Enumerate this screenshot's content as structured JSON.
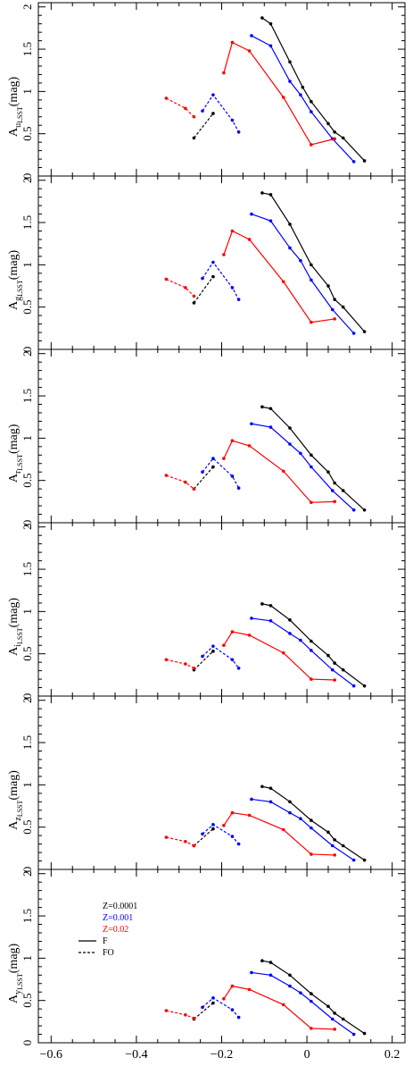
{
  "chart_data": {
    "type": "line",
    "xlabel": "Log(P)(days)",
    "xlim": [
      -0.63,
      0.23
    ],
    "x_ticks": [
      -0.6,
      -0.4,
      -0.2,
      0,
      0.2
    ],
    "x_tick_labels": [
      "−0.6",
      "−0.4",
      "−0.2",
      "0",
      "0.2"
    ],
    "ylim": [
      0,
      2.05
    ],
    "y_ticks": [
      0,
      0.5,
      1,
      1.5,
      2
    ],
    "y_tick_labels": [
      "0",
      "0.5",
      "1",
      "1.5",
      "2"
    ],
    "grid": false,
    "colors": {
      "Z=0.0001": "#000000",
      "Z=0.001": "#0000ff",
      "Z=0.02": "#ff0000"
    },
    "legend": {
      "panel": 5,
      "metallicities": [
        {
          "label": "Z=0.0001",
          "color": "#000000"
        },
        {
          "label": "Z=0.001",
          "color": "#0000ff"
        },
        {
          "label": "Z=0.02",
          "color": "#ff0000"
        }
      ],
      "modes": [
        {
          "label": "F",
          "style": "solid"
        },
        {
          "label": "FO",
          "style": "dashed"
        }
      ]
    },
    "panels": [
      {
        "ylabel_main": "A",
        "ylabel_sub": "u",
        "ylabel_subsub": "LSST",
        "ylabel_unit": "(mag)",
        "series": [
          {
            "metallicity": "Z=0.0001",
            "mode": "F",
            "x": [
              -0.105,
              -0.085,
              -0.04,
              -0.01,
              0.01,
              0.05,
              0.065,
              0.085,
              0.135
            ],
            "y": [
              1.87,
              1.8,
              1.35,
              1.05,
              0.88,
              0.62,
              0.52,
              0.45,
              0.18
            ]
          },
          {
            "metallicity": "Z=0.001",
            "mode": "F",
            "x": [
              -0.13,
              -0.085,
              -0.04,
              -0.015,
              0.01,
              0.06,
              0.11
            ],
            "y": [
              1.66,
              1.54,
              1.12,
              0.96,
              0.76,
              0.44,
              0.17
            ]
          },
          {
            "metallicity": "Z=0.02",
            "mode": "F",
            "x": [
              -0.195,
              -0.175,
              -0.135,
              -0.055,
              0.01,
              0.065
            ],
            "y": [
              1.22,
              1.58,
              1.48,
              0.93,
              0.37,
              0.44
            ]
          },
          {
            "metallicity": "Z=0.0001",
            "mode": "FO",
            "x": [
              -0.265,
              -0.22
            ],
            "y": [
              0.45,
              0.74
            ]
          },
          {
            "metallicity": "Z=0.001",
            "mode": "FO",
            "x": [
              -0.245,
              -0.22,
              -0.175,
              -0.16
            ],
            "y": [
              0.77,
              0.96,
              0.66,
              0.52
            ]
          },
          {
            "metallicity": "Z=0.02",
            "mode": "FO",
            "x": [
              -0.33,
              -0.285,
              -0.265
            ],
            "y": [
              0.92,
              0.8,
              0.7
            ]
          }
        ]
      },
      {
        "ylabel_main": "A",
        "ylabel_sub": "g",
        "ylabel_subsub": "LSST",
        "ylabel_unit": "(mag)",
        "series": [
          {
            "metallicity": "Z=0.0001",
            "mode": "F",
            "x": [
              -0.105,
              -0.085,
              -0.04,
              0.01,
              0.05,
              0.065,
              0.085,
              0.135
            ],
            "y": [
              1.85,
              1.83,
              1.48,
              1.0,
              0.75,
              0.59,
              0.5,
              0.21
            ]
          },
          {
            "metallicity": "Z=0.001",
            "mode": "F",
            "x": [
              -0.13,
              -0.085,
              -0.04,
              -0.015,
              0.01,
              0.06,
              0.11
            ],
            "y": [
              1.6,
              1.52,
              1.2,
              1.05,
              0.82,
              0.47,
              0.19
            ]
          },
          {
            "metallicity": "Z=0.02",
            "mode": "F",
            "x": [
              -0.195,
              -0.175,
              -0.135,
              -0.055,
              0.01,
              0.065
            ],
            "y": [
              1.12,
              1.4,
              1.3,
              0.8,
              0.32,
              0.36
            ]
          },
          {
            "metallicity": "Z=0.0001",
            "mode": "FO",
            "x": [
              -0.265,
              -0.22
            ],
            "y": [
              0.55,
              0.86
            ]
          },
          {
            "metallicity": "Z=0.001",
            "mode": "FO",
            "x": [
              -0.245,
              -0.22,
              -0.175,
              -0.16
            ],
            "y": [
              0.84,
              1.03,
              0.73,
              0.59
            ]
          },
          {
            "metallicity": "Z=0.02",
            "mode": "FO",
            "x": [
              -0.33,
              -0.285,
              -0.265
            ],
            "y": [
              0.83,
              0.73,
              0.63
            ]
          }
        ]
      },
      {
        "ylabel_main": "A",
        "ylabel_sub": "r",
        "ylabel_subsub": "LSST",
        "ylabel_unit": "(mag)",
        "series": [
          {
            "metallicity": "Z=0.0001",
            "mode": "F",
            "x": [
              -0.105,
              -0.085,
              -0.04,
              0.01,
              0.05,
              0.065,
              0.085,
              0.135
            ],
            "y": [
              1.37,
              1.35,
              1.12,
              0.8,
              0.6,
              0.47,
              0.38,
              0.15
            ]
          },
          {
            "metallicity": "Z=0.001",
            "mode": "F",
            "x": [
              -0.13,
              -0.085,
              -0.04,
              -0.015,
              0.01,
              0.06,
              0.11
            ],
            "y": [
              1.17,
              1.13,
              0.93,
              0.82,
              0.66,
              0.38,
              0.15
            ]
          },
          {
            "metallicity": "Z=0.02",
            "mode": "F",
            "x": [
              -0.195,
              -0.175,
              -0.135,
              -0.055,
              0.01,
              0.065
            ],
            "y": [
              0.76,
              0.97,
              0.91,
              0.61,
              0.24,
              0.25
            ]
          },
          {
            "metallicity": "Z=0.0001",
            "mode": "FO",
            "x": [
              -0.265,
              -0.22
            ],
            "y": [
              0.4,
              0.66
            ]
          },
          {
            "metallicity": "Z=0.001",
            "mode": "FO",
            "x": [
              -0.245,
              -0.22,
              -0.175,
              -0.16
            ],
            "y": [
              0.6,
              0.76,
              0.55,
              0.41
            ]
          },
          {
            "metallicity": "Z=0.02",
            "mode": "FO",
            "x": [
              -0.33,
              -0.285,
              -0.265
            ],
            "y": [
              0.56,
              0.48,
              0.4
            ]
          }
        ]
      },
      {
        "ylabel_main": "A",
        "ylabel_sub": "i",
        "ylabel_subsub": "LSST",
        "ylabel_unit": "(mag)",
        "series": [
          {
            "metallicity": "Z=0.0001",
            "mode": "F",
            "x": [
              -0.105,
              -0.085,
              -0.04,
              0.01,
              0.05,
              0.065,
              0.085,
              0.135
            ],
            "y": [
              1.09,
              1.07,
              0.9,
              0.65,
              0.48,
              0.39,
              0.31,
              0.12
            ]
          },
          {
            "metallicity": "Z=0.001",
            "mode": "F",
            "x": [
              -0.13,
              -0.085,
              -0.04,
              -0.015,
              0.01,
              0.06,
              0.11
            ],
            "y": [
              0.92,
              0.89,
              0.74,
              0.66,
              0.54,
              0.31,
              0.12
            ]
          },
          {
            "metallicity": "Z=0.02",
            "mode": "F",
            "x": [
              -0.195,
              -0.175,
              -0.135,
              -0.055,
              0.01,
              0.065
            ],
            "y": [
              0.6,
              0.76,
              0.72,
              0.51,
              0.2,
              0.19
            ]
          },
          {
            "metallicity": "Z=0.0001",
            "mode": "FO",
            "x": [
              -0.265,
              -0.22
            ],
            "y": [
              0.31,
              0.53
            ]
          },
          {
            "metallicity": "Z=0.001",
            "mode": "FO",
            "x": [
              -0.245,
              -0.22,
              -0.175,
              -0.16
            ],
            "y": [
              0.47,
              0.59,
              0.43,
              0.33
            ]
          },
          {
            "metallicity": "Z=0.02",
            "mode": "FO",
            "x": [
              -0.33,
              -0.285,
              -0.265
            ],
            "y": [
              0.43,
              0.38,
              0.33
            ]
          }
        ]
      },
      {
        "ylabel_main": "A",
        "ylabel_sub": "z",
        "ylabel_subsub": "LSST",
        "ylabel_unit": "(mag)",
        "series": [
          {
            "metallicity": "Z=0.0001",
            "mode": "F",
            "x": [
              -0.105,
              -0.085,
              -0.04,
              0.01,
              0.05,
              0.065,
              0.085,
              0.135
            ],
            "y": [
              0.98,
              0.96,
              0.8,
              0.58,
              0.44,
              0.35,
              0.28,
              0.11
            ]
          },
          {
            "metallicity": "Z=0.001",
            "mode": "F",
            "x": [
              -0.13,
              -0.085,
              -0.04,
              -0.015,
              0.01,
              0.06,
              0.11
            ],
            "y": [
              0.83,
              0.8,
              0.67,
              0.6,
              0.49,
              0.28,
              0.11
            ]
          },
          {
            "metallicity": "Z=0.02",
            "mode": "F",
            "x": [
              -0.195,
              -0.175,
              -0.135,
              -0.055,
              0.01,
              0.065
            ],
            "y": [
              0.52,
              0.67,
              0.64,
              0.47,
              0.18,
              0.17
            ]
          },
          {
            "metallicity": "Z=0.0001",
            "mode": "FO",
            "x": [
              -0.265,
              -0.22
            ],
            "y": [
              0.28,
              0.48
            ]
          },
          {
            "metallicity": "Z=0.001",
            "mode": "FO",
            "x": [
              -0.245,
              -0.22,
              -0.175,
              -0.16
            ],
            "y": [
              0.42,
              0.53,
              0.39,
              0.3
            ]
          },
          {
            "metallicity": "Z=0.02",
            "mode": "FO",
            "x": [
              -0.33,
              -0.285,
              -0.265
            ],
            "y": [
              0.38,
              0.33,
              0.28
            ]
          }
        ]
      },
      {
        "ylabel_main": "A",
        "ylabel_sub": "y",
        "ylabel_subsub": "LSST",
        "ylabel_unit": "(mag)",
        "series": [
          {
            "metallicity": "Z=0.0001",
            "mode": "F",
            "x": [
              -0.105,
              -0.085,
              -0.04,
              0.01,
              0.05,
              0.065,
              0.085,
              0.135
            ],
            "y": [
              0.97,
              0.95,
              0.8,
              0.58,
              0.43,
              0.35,
              0.28,
              0.11
            ]
          },
          {
            "metallicity": "Z=0.001",
            "mode": "F",
            "x": [
              -0.13,
              -0.085,
              -0.04,
              -0.015,
              0.01,
              0.06,
              0.11
            ],
            "y": [
              0.83,
              0.8,
              0.67,
              0.59,
              0.49,
              0.28,
              0.1
            ]
          },
          {
            "metallicity": "Z=0.02",
            "mode": "F",
            "x": [
              -0.195,
              -0.175,
              -0.135,
              -0.055,
              0.01,
              0.065
            ],
            "y": [
              0.52,
              0.67,
              0.63,
              0.45,
              0.17,
              0.16
            ]
          },
          {
            "metallicity": "Z=0.0001",
            "mode": "FO",
            "x": [
              -0.265,
              -0.22
            ],
            "y": [
              0.28,
              0.47
            ]
          },
          {
            "metallicity": "Z=0.001",
            "mode": "FO",
            "x": [
              -0.245,
              -0.22,
              -0.175,
              -0.16
            ],
            "y": [
              0.42,
              0.53,
              0.39,
              0.3
            ]
          },
          {
            "metallicity": "Z=0.02",
            "mode": "FO",
            "x": [
              -0.33,
              -0.285,
              -0.265
            ],
            "y": [
              0.38,
              0.33,
              0.29
            ]
          }
        ]
      }
    ]
  }
}
